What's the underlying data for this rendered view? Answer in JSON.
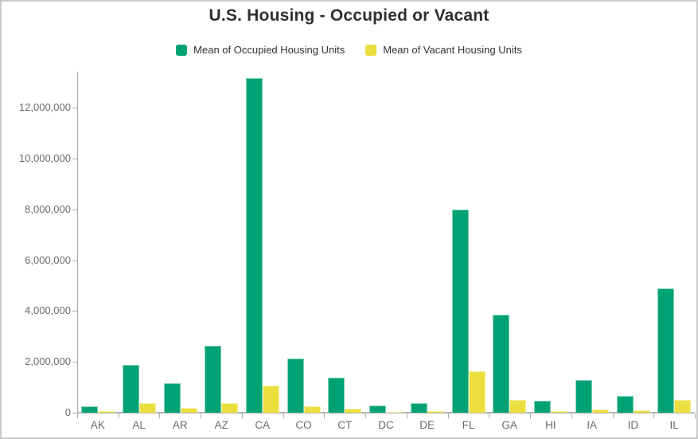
{
  "title": "U.S. Housing - Occupied or Vacant",
  "colors": {
    "occupied": "#00a273",
    "vacant": "#eadf3e",
    "axis": "#ababab",
    "label": "#6b6b6b",
    "title_text": "#2f2f2f"
  },
  "legend": [
    {
      "label": "Mean of Occupied Housing Units",
      "color": "#00a273"
    },
    {
      "label": "Mean of Vacant Housing Units",
      "color": "#eadf3e"
    }
  ],
  "chart_data": {
    "type": "bar",
    "title": "U.S. Housing - Occupied or Vacant",
    "xlabel": "",
    "ylabel": "",
    "grid": false,
    "legend_position": "top",
    "categories": [
      "AK",
      "AL",
      "AR",
      "AZ",
      "CA",
      "CO",
      "CT",
      "DC",
      "DE",
      "FL",
      "GA",
      "HI",
      "IA",
      "ID",
      "IL"
    ],
    "series": [
      {
        "name": "Mean of Occupied Housing Units",
        "color": "#00a273",
        "values": [
          260000,
          1890000,
          1160000,
          2620000,
          13150000,
          2120000,
          1380000,
          290000,
          380000,
          7980000,
          3850000,
          470000,
          1290000,
          660000,
          4900000
        ]
      },
      {
        "name": "Mean of Vacant Housing Units",
        "color": "#eadf3e",
        "values": [
          70000,
          380000,
          190000,
          390000,
          1080000,
          240000,
          150000,
          40000,
          70000,
          1620000,
          500000,
          75000,
          140000,
          85000,
          490000
        ]
      }
    ],
    "ylim": [
      0,
      13400000
    ],
    "y_ticks": [
      {
        "value": 0,
        "label": "0"
      },
      {
        "value": 2000000,
        "label": "2,000,000"
      },
      {
        "value": 4000000,
        "label": "4,000,000"
      },
      {
        "value": 6000000,
        "label": "6,000,000"
      },
      {
        "value": 8000000,
        "label": "8,000,000"
      },
      {
        "value": 10000000,
        "label": "10,000,000"
      },
      {
        "value": 12000000,
        "label": "12,000,000"
      }
    ]
  }
}
